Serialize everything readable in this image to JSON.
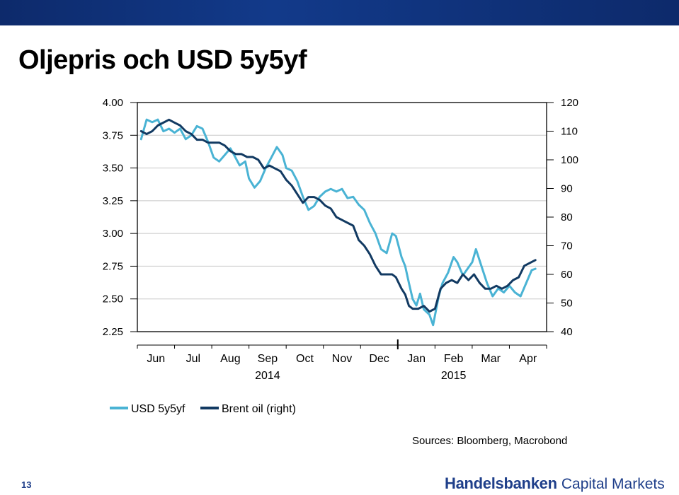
{
  "page": {
    "title": "Oljepris och USD 5y5yf",
    "sources": "Sources: Bloomberg, Macrobond",
    "page_number": "13",
    "brand_bold": "Handelsbanken",
    "brand_light": "Capital Markets",
    "colors": {
      "banner": "#123a8a",
      "brand": "#1f3f8a"
    }
  },
  "chart_data": {
    "type": "line",
    "title": "",
    "x_ticks": [
      {
        "x": 0.5,
        "label": "Jun"
      },
      {
        "x": 1.5,
        "label": "Jul"
      },
      {
        "x": 2.5,
        "label": "Aug"
      },
      {
        "x": 3.5,
        "label": "Sep"
      },
      {
        "x": 4.5,
        "label": "Oct"
      },
      {
        "x": 5.5,
        "label": "Nov"
      },
      {
        "x": 6.5,
        "label": "Dec"
      },
      {
        "x": 7.5,
        "label": "Jan"
      },
      {
        "x": 8.5,
        "label": "Feb"
      },
      {
        "x": 9.5,
        "label": "Mar"
      },
      {
        "x": 10.5,
        "label": "Apr"
      }
    ],
    "year_labels": [
      {
        "x": 3.5,
        "label": "2014"
      },
      {
        "x": 8.5,
        "label": "2015"
      }
    ],
    "year_divider_x": 7,
    "xlim": [
      0,
      11
    ],
    "y_left": {
      "ticks": [
        "4.00",
        "3.75",
        "3.50",
        "3.25",
        "3.00",
        "2.75",
        "2.50",
        "2.25"
      ],
      "lim": [
        2.25,
        4.0
      ]
    },
    "y_right": {
      "ticks": [
        "120",
        "110",
        "100",
        "90",
        "80",
        "70",
        "60",
        "50",
        "40"
      ],
      "lim": [
        40,
        120
      ]
    },
    "grid": "horizontal",
    "legend": "bottom-left",
    "series": [
      {
        "name": "USD 5y5yf",
        "axis": "left",
        "color": "#4ab3d4",
        "points": [
          [
            0.1,
            3.72
          ],
          [
            0.25,
            3.87
          ],
          [
            0.4,
            3.85
          ],
          [
            0.55,
            3.87
          ],
          [
            0.7,
            3.78
          ],
          [
            0.85,
            3.8
          ],
          [
            1.0,
            3.77
          ],
          [
            1.15,
            3.8
          ],
          [
            1.3,
            3.72
          ],
          [
            1.45,
            3.75
          ],
          [
            1.6,
            3.82
          ],
          [
            1.75,
            3.8
          ],
          [
            1.9,
            3.7
          ],
          [
            2.05,
            3.58
          ],
          [
            2.2,
            3.55
          ],
          [
            2.35,
            3.6
          ],
          [
            2.5,
            3.65
          ],
          [
            2.6,
            3.6
          ],
          [
            2.75,
            3.52
          ],
          [
            2.9,
            3.55
          ],
          [
            3.0,
            3.42
          ],
          [
            3.15,
            3.35
          ],
          [
            3.3,
            3.4
          ],
          [
            3.45,
            3.5
          ],
          [
            3.6,
            3.58
          ],
          [
            3.75,
            3.66
          ],
          [
            3.9,
            3.6
          ],
          [
            4.0,
            3.5
          ],
          [
            4.15,
            3.48
          ],
          [
            4.3,
            3.4
          ],
          [
            4.45,
            3.28
          ],
          [
            4.6,
            3.18
          ],
          [
            4.75,
            3.21
          ],
          [
            4.9,
            3.28
          ],
          [
            5.05,
            3.32
          ],
          [
            5.2,
            3.34
          ],
          [
            5.35,
            3.32
          ],
          [
            5.5,
            3.34
          ],
          [
            5.65,
            3.27
          ],
          [
            5.8,
            3.28
          ],
          [
            5.95,
            3.22
          ],
          [
            6.1,
            3.18
          ],
          [
            6.25,
            3.08
          ],
          [
            6.4,
            3.0
          ],
          [
            6.55,
            2.88
          ],
          [
            6.7,
            2.85
          ],
          [
            6.85,
            3.0
          ],
          [
            6.95,
            2.98
          ],
          [
            7.1,
            2.82
          ],
          [
            7.2,
            2.75
          ],
          [
            7.3,
            2.62
          ],
          [
            7.4,
            2.5
          ],
          [
            7.5,
            2.45
          ],
          [
            7.6,
            2.54
          ],
          [
            7.7,
            2.42
          ],
          [
            7.85,
            2.38
          ],
          [
            7.95,
            2.3
          ],
          [
            8.1,
            2.52
          ],
          [
            8.2,
            2.62
          ],
          [
            8.35,
            2.7
          ],
          [
            8.5,
            2.82
          ],
          [
            8.6,
            2.78
          ],
          [
            8.75,
            2.68
          ],
          [
            8.85,
            2.72
          ],
          [
            9.0,
            2.78
          ],
          [
            9.1,
            2.88
          ],
          [
            9.25,
            2.75
          ],
          [
            9.4,
            2.62
          ],
          [
            9.55,
            2.52
          ],
          [
            9.7,
            2.58
          ],
          [
            9.85,
            2.55
          ],
          [
            10.0,
            2.6
          ],
          [
            10.15,
            2.55
          ],
          [
            10.3,
            2.52
          ],
          [
            10.45,
            2.62
          ],
          [
            10.6,
            2.72
          ],
          [
            10.7,
            2.73
          ]
        ]
      },
      {
        "name": "Brent oil (right)",
        "axis": "right",
        "color": "#123a62",
        "points": [
          [
            0.1,
            110
          ],
          [
            0.25,
            109
          ],
          [
            0.4,
            110
          ],
          [
            0.55,
            112
          ],
          [
            0.7,
            113
          ],
          [
            0.85,
            114
          ],
          [
            1.0,
            113
          ],
          [
            1.15,
            112
          ],
          [
            1.3,
            110
          ],
          [
            1.45,
            109
          ],
          [
            1.6,
            107
          ],
          [
            1.75,
            107
          ],
          [
            1.9,
            106
          ],
          [
            2.05,
            106
          ],
          [
            2.2,
            106
          ],
          [
            2.35,
            105
          ],
          [
            2.5,
            103
          ],
          [
            2.65,
            102
          ],
          [
            2.8,
            102
          ],
          [
            2.95,
            101
          ],
          [
            3.1,
            101
          ],
          [
            3.25,
            100
          ],
          [
            3.4,
            97
          ],
          [
            3.55,
            98
          ],
          [
            3.7,
            97
          ],
          [
            3.85,
            96
          ],
          [
            4.0,
            93
          ],
          [
            4.15,
            91
          ],
          [
            4.3,
            88
          ],
          [
            4.45,
            85
          ],
          [
            4.6,
            87
          ],
          [
            4.75,
            87
          ],
          [
            4.9,
            86
          ],
          [
            5.05,
            84
          ],
          [
            5.2,
            83
          ],
          [
            5.35,
            80
          ],
          [
            5.5,
            79
          ],
          [
            5.65,
            78
          ],
          [
            5.8,
            77
          ],
          [
            5.95,
            72
          ],
          [
            6.1,
            70
          ],
          [
            6.25,
            67
          ],
          [
            6.4,
            63
          ],
          [
            6.55,
            60
          ],
          [
            6.7,
            60
          ],
          [
            6.85,
            60
          ],
          [
            6.95,
            59
          ],
          [
            7.1,
            55
          ],
          [
            7.2,
            53
          ],
          [
            7.3,
            49
          ],
          [
            7.4,
            48
          ],
          [
            7.55,
            48
          ],
          [
            7.7,
            49
          ],
          [
            7.85,
            47
          ],
          [
            8.0,
            48
          ],
          [
            8.15,
            55
          ],
          [
            8.3,
            57
          ],
          [
            8.45,
            58
          ],
          [
            8.6,
            57
          ],
          [
            8.75,
            60
          ],
          [
            8.9,
            58
          ],
          [
            9.05,
            60
          ],
          [
            9.2,
            57
          ],
          [
            9.35,
            55
          ],
          [
            9.5,
            55
          ],
          [
            9.65,
            56
          ],
          [
            9.8,
            55
          ],
          [
            9.95,
            56
          ],
          [
            10.1,
            58
          ],
          [
            10.25,
            59
          ],
          [
            10.4,
            63
          ],
          [
            10.55,
            64
          ],
          [
            10.7,
            65
          ]
        ]
      }
    ]
  }
}
